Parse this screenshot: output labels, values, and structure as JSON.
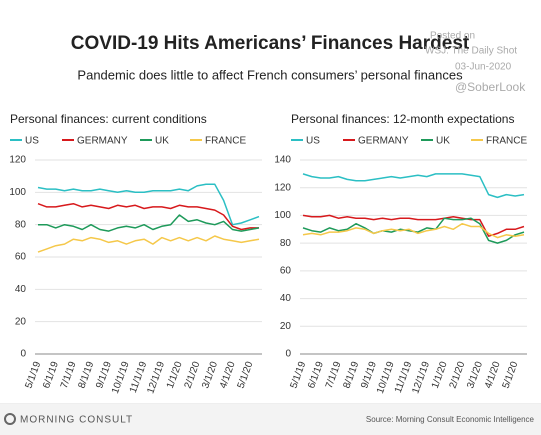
{
  "header": {
    "title": "COVID-19 Hits Americans’ Finances Hardest",
    "subtitle": "Pandemic does little to affect French consumers’ personal finances",
    "watermark": [
      "Posted on",
      "WSJ: The Daily Shot",
      "03-Jun-2020",
      "@SoberLook"
    ]
  },
  "footer": {
    "brand": "MORNING CONSULT",
    "source": "Source: Morning Consult Economic Intelligence"
  },
  "chart_data": [
    {
      "type": "line",
      "title": "Personal finances: current conditions",
      "categories": [
        "5/1/19",
        null,
        "6/1/19",
        null,
        "7/1/19",
        null,
        "8/1/19",
        null,
        "9/1/19",
        null,
        "10/1/19",
        null,
        "11/1/19",
        null,
        "12/1/19",
        null,
        "1/1/20",
        null,
        "2/1/20",
        null,
        "3/1/20",
        null,
        "4/1/20",
        null,
        "5/1/20",
        null
      ],
      "ylim": [
        0,
        120
      ],
      "yticks": [
        0,
        20,
        40,
        60,
        80,
        100,
        120
      ],
      "grid": true,
      "series": [
        {
          "name": "US",
          "color": "#2bbfc4",
          "values": [
            103,
            102,
            102,
            101,
            102,
            101,
            101,
            102,
            101,
            100,
            101,
            100,
            100,
            101,
            101,
            101,
            102,
            101,
            104,
            105,
            105,
            95,
            80,
            81,
            83,
            85
          ]
        },
        {
          "name": "GERMANY",
          "color": "#d7191c",
          "values": [
            93,
            91,
            91,
            92,
            93,
            91,
            92,
            91,
            90,
            92,
            91,
            92,
            90,
            91,
            91,
            90,
            92,
            91,
            91,
            90,
            89,
            86,
            79,
            77,
            78,
            78
          ]
        },
        {
          "name": "UK",
          "color": "#1e9a5a",
          "values": [
            80,
            80,
            78,
            80,
            79,
            77,
            80,
            77,
            76,
            78,
            79,
            78,
            80,
            77,
            79,
            80,
            86,
            82,
            83,
            81,
            80,
            82,
            77,
            76,
            77,
            78
          ]
        },
        {
          "name": "FRANCE",
          "color": "#f5c84a",
          "values": [
            63,
            65,
            67,
            68,
            71,
            70,
            72,
            71,
            69,
            70,
            68,
            70,
            71,
            68,
            72,
            70,
            72,
            70,
            72,
            70,
            73,
            71,
            70,
            69,
            70,
            71
          ]
        }
      ]
    },
    {
      "type": "line",
      "title": "Personal finances: 12-month expectations",
      "categories": [
        "5/1/19",
        null,
        "6/1/19",
        null,
        "7/1/19",
        null,
        "8/1/19",
        null,
        "9/1/19",
        null,
        "10/1/19",
        null,
        "11/1/19",
        null,
        "12/1/19",
        null,
        "1/1/20",
        null,
        "2/1/20",
        null,
        "3/1/20",
        null,
        "4/1/20",
        null,
        "5/1/20",
        null
      ],
      "ylim": [
        0,
        140
      ],
      "yticks": [
        0,
        20,
        40,
        60,
        80,
        100,
        120,
        140
      ],
      "grid": true,
      "series": [
        {
          "name": "US",
          "color": "#2bbfc4",
          "values": [
            130,
            128,
            127,
            127,
            128,
            126,
            125,
            125,
            126,
            127,
            128,
            127,
            128,
            129,
            128,
            130,
            130,
            130,
            130,
            129,
            128,
            115,
            113,
            115,
            114,
            115
          ]
        },
        {
          "name": "GERMANY",
          "color": "#d7191c",
          "values": [
            100,
            99,
            99,
            100,
            98,
            99,
            98,
            98,
            97,
            98,
            97,
            98,
            98,
            97,
            97,
            97,
            98,
            99,
            98,
            97,
            97,
            85,
            87,
            90,
            90,
            92
          ]
        },
        {
          "name": "UK",
          "color": "#1e9a5a",
          "values": [
            91,
            89,
            88,
            91,
            89,
            90,
            94,
            91,
            87,
            89,
            88,
            90,
            89,
            88,
            91,
            90,
            98,
            97,
            97,
            98,
            94,
            82,
            80,
            82,
            86,
            88
          ]
        },
        {
          "name": "FRANCE",
          "color": "#f5c84a",
          "values": [
            86,
            87,
            86,
            88,
            88,
            89,
            91,
            90,
            87,
            89,
            90,
            89,
            90,
            87,
            89,
            90,
            92,
            90,
            94,
            92,
            92,
            87,
            84,
            86,
            85,
            86
          ]
        }
      ]
    }
  ]
}
